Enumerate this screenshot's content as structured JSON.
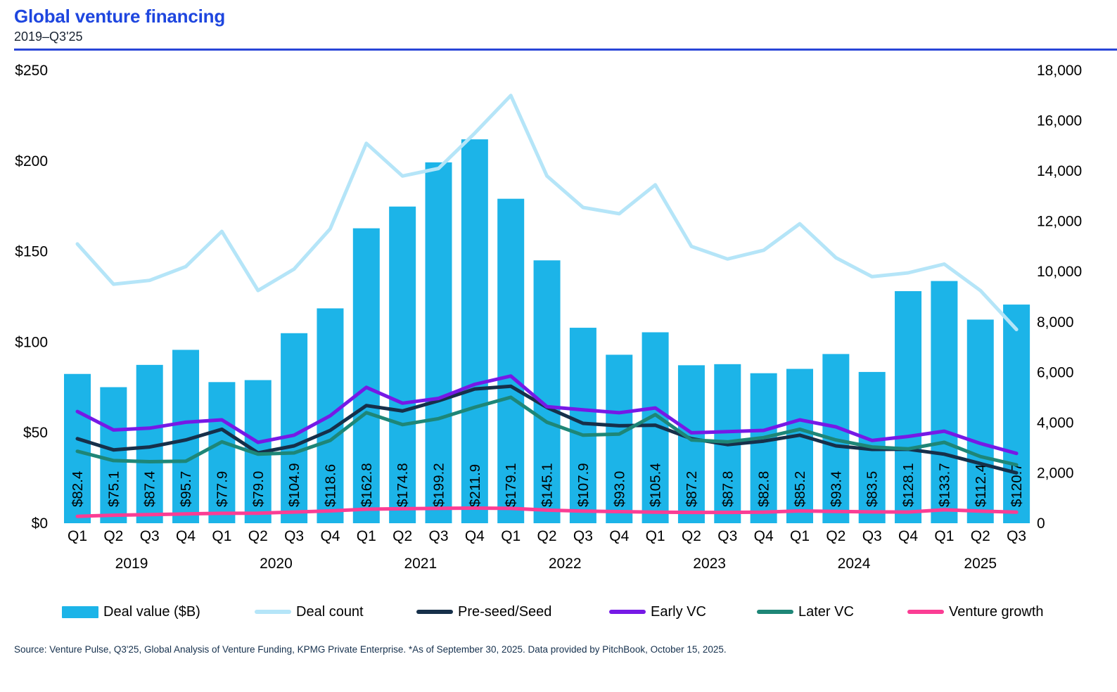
{
  "header": {
    "title": "Global venture financing",
    "subtitle": "2019–Q3'25"
  },
  "source": "Source: Venture Pulse, Q3'25, Global Analysis of Venture Funding, KPMG Private Enterprise. *As of September 30, 2025. Data provided by PitchBook, October 15, 2025.",
  "colors": {
    "title_blue": "#1E46DF",
    "divider_blue": "#2946D8",
    "bar_cyan": "#1CB4E8",
    "deal_count_line": "#B5E5F8",
    "pre_seed_line": "#16304A",
    "early_vc_line": "#7619E6",
    "later_vc_line": "#1E8677",
    "venture_growth_line": "#FB3D94",
    "axis_text": "#000000",
    "source_text": "#16314E"
  },
  "chart_data": {
    "type": "bar",
    "subtype": "bar+line combo, dual axis",
    "title": "Global venture financing",
    "subtitle": "2019–Q3'25",
    "categories": [
      "Q1",
      "Q2",
      "Q3",
      "Q4",
      "Q1",
      "Q2",
      "Q3",
      "Q4",
      "Q1",
      "Q2",
      "Q3",
      "Q4",
      "Q1",
      "Q2",
      "Q3",
      "Q4",
      "Q1",
      "Q2",
      "Q3",
      "Q4",
      "Q1",
      "Q2",
      "Q3",
      "Q4",
      "Q1",
      "Q2",
      "Q3"
    ],
    "year_groups": [
      {
        "label": "2019",
        "quarters": 4
      },
      {
        "label": "2020",
        "quarters": 4
      },
      {
        "label": "2021",
        "quarters": 4
      },
      {
        "label": "2022",
        "quarters": 4
      },
      {
        "label": "2023",
        "quarters": 4
      },
      {
        "label": "2024",
        "quarters": 4
      },
      {
        "label": "2025",
        "quarters": 3
      }
    ],
    "bar_series": {
      "name": "Deal value ($B)",
      "axis": "left",
      "values": [
        82.4,
        75.1,
        87.4,
        95.7,
        77.9,
        79.0,
        104.9,
        118.6,
        162.8,
        174.8,
        199.2,
        211.9,
        179.1,
        145.1,
        107.9,
        93.0,
        105.4,
        87.2,
        87.8,
        82.8,
        85.2,
        93.4,
        83.5,
        128.1,
        133.7,
        112.4,
        120.7
      ],
      "labels": [
        "$82.4",
        "$75.1",
        "$87.4",
        "$95.7",
        "$77.9",
        "$79.0",
        "$104.9",
        "$118.6",
        "$162.8",
        "$174.8",
        "$199.2",
        "$211.9",
        "$179.1",
        "$145.1",
        "$107.9",
        "$93.0",
        "$105.4",
        "$87.2",
        "$87.8",
        "$82.8",
        "$85.2",
        "$93.4",
        "$83.5",
        "$128.1",
        "$133.7",
        "$112.4",
        "$120.7"
      ]
    },
    "line_series": [
      {
        "name": "Deal count",
        "axis": "right",
        "color_key": "deal_count_line",
        "values": [
          11100,
          9500,
          9650,
          10200,
          11600,
          9250,
          10100,
          11700,
          15100,
          13800,
          14100,
          15500,
          17000,
          13800,
          12550,
          12300,
          13450,
          11000,
          10500,
          10850,
          11900,
          10550,
          9800,
          9950,
          10300,
          9250,
          7700
        ]
      },
      {
        "name": "Pre-seed/Seed",
        "axis": "right",
        "color_key": "pre_seed_line",
        "values": [
          3360,
          2915,
          3030,
          3310,
          3735,
          2795,
          3075,
          3690,
          4675,
          4460,
          4865,
          5335,
          5445,
          4600,
          3970,
          3875,
          3895,
          3360,
          3125,
          3265,
          3500,
          3075,
          2935,
          2940,
          2745,
          2370,
          2000
        ]
      },
      {
        "name": "Early VC",
        "axis": "right",
        "color_key": "early_vc_line",
        "values": [
          4440,
          3705,
          3780,
          4015,
          4110,
          3215,
          3500,
          4270,
          5400,
          4770,
          4960,
          5520,
          5850,
          4630,
          4505,
          4390,
          4580,
          3595,
          3640,
          3690,
          4110,
          3830,
          3290,
          3450,
          3660,
          3170,
          2775
        ]
      },
      {
        "name": "Later VC",
        "axis": "right",
        "color_key": "later_vc_line",
        "values": [
          2860,
          2490,
          2445,
          2465,
          3235,
          2745,
          2795,
          3290,
          4395,
          3920,
          4155,
          4610,
          5005,
          4015,
          3500,
          3545,
          4315,
          3310,
          3235,
          3405,
          3735,
          3310,
          3030,
          2955,
          3215,
          2650,
          2320
        ]
      },
      {
        "name": "Venture growth",
        "axis": "right",
        "color_key": "venture_growth_line",
        "values": [
          275,
          320,
          340,
          370,
          395,
          400,
          445,
          490,
          560,
          575,
          590,
          600,
          590,
          520,
          480,
          460,
          440,
          430,
          430,
          440,
          490,
          470,
          450,
          445,
          535,
          480,
          440
        ]
      }
    ],
    "left_axis": {
      "min": 0,
      "max": 250,
      "ticks": [
        "$0",
        "$50",
        "$100",
        "$150",
        "$200",
        "$250"
      ]
    },
    "right_axis": {
      "min": 0,
      "max": 18000,
      "ticks": [
        "0",
        "2,000",
        "4,000",
        "6,000",
        "8,000",
        "10,000",
        "12,000",
        "14,000",
        "16,000",
        "18,000"
      ]
    },
    "grid": false,
    "legend_position": "bottom",
    "legend": [
      {
        "label": "Deal value ($B)",
        "swatch": "bar",
        "color_key": "bar_cyan"
      },
      {
        "label": "Deal count",
        "swatch": "line",
        "color_key": "deal_count_line"
      },
      {
        "label": "Pre-seed/Seed",
        "swatch": "line",
        "color_key": "pre_seed_line"
      },
      {
        "label": "Early VC",
        "swatch": "line",
        "color_key": "early_vc_line"
      },
      {
        "label": "Later VC",
        "swatch": "line",
        "color_key": "later_vc_line"
      },
      {
        "label": "Venture growth",
        "swatch": "line",
        "color_key": "venture_growth_line"
      }
    ],
    "legend_x_positions": [
      88,
      362,
      592,
      866,
      1076,
      1290
    ]
  }
}
